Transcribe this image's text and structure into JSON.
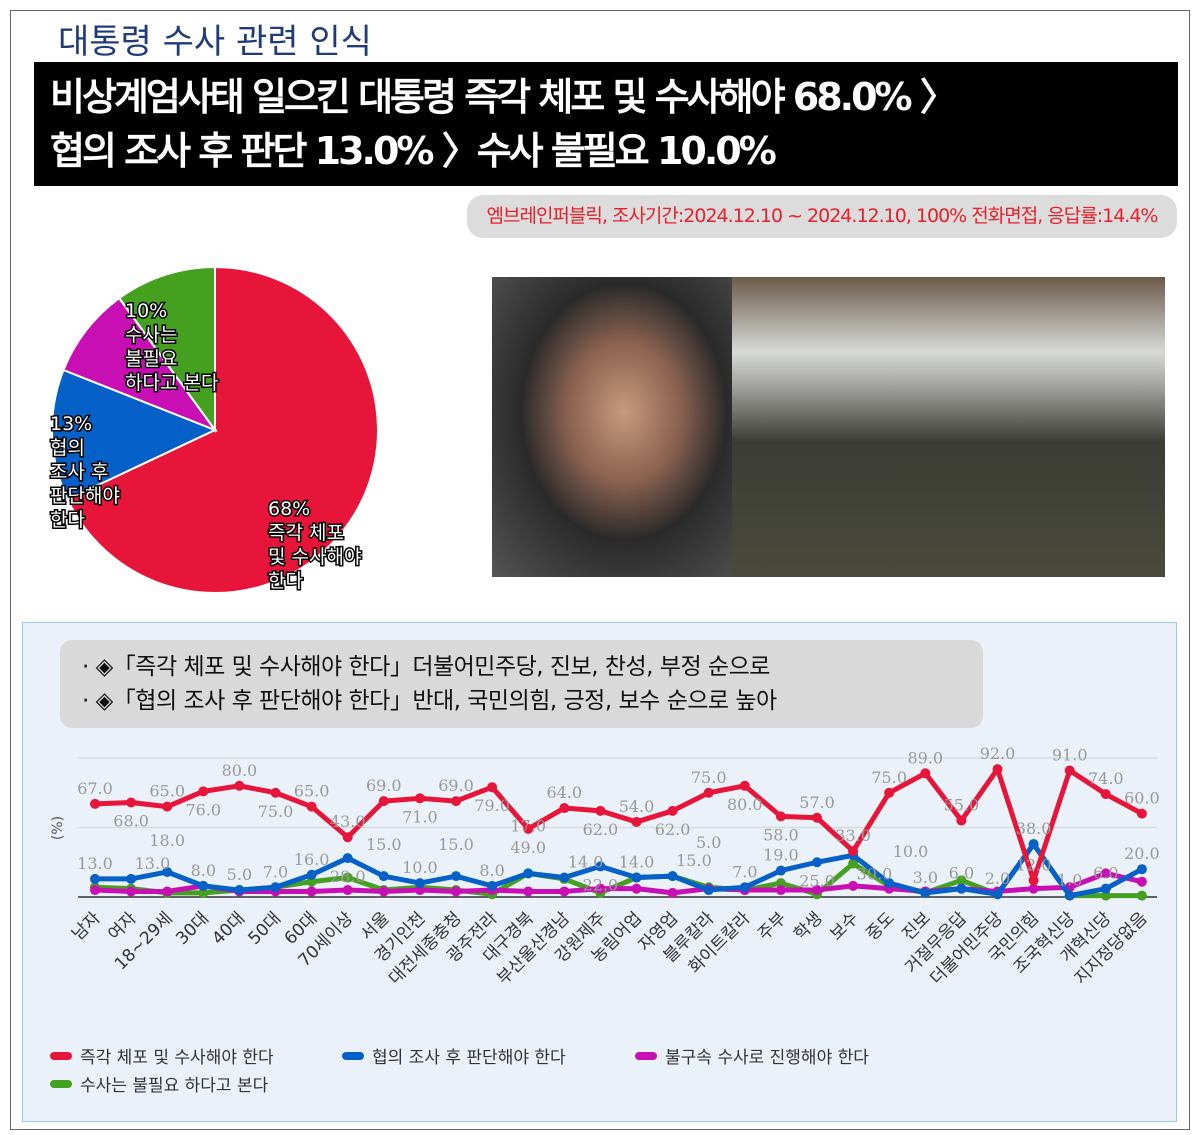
{
  "title": "대통령 수사 관련 인식",
  "banner": {
    "line1": "비상계엄사태 일으킨 대통령 즉각 체포 및 수사해야 68.0% 〉",
    "line2": "협의 조사 후 판단 13.0% 〉수사 불필요 10.0%"
  },
  "source": "엠브레인퍼블릭, 조사기간:2024.12.10 ~ 2024.12.10, 100% 전화면접, 응답률:14.4%",
  "callout": {
    "line1": "· ◈「즉각 체포 및 수사해야 한다」더불어민주당, 진보, 찬성, 부정 순으로",
    "line2": "· ◈「협의 조사 후 판단해야 한다」반대, 국민의힘, 긍정, 보수 순으로 높아"
  },
  "chart_data": [
    {
      "type": "pie",
      "slices": [
        {
          "label": "68%",
          "name": "즉각 체포 및 수사해야 한다",
          "text": [
            "즉각 체포",
            "및 수사해야",
            "한다"
          ],
          "value": 68,
          "color": "#e8153a"
        },
        {
          "label": "13%",
          "name": "협의 조사 후 판단해야 한다",
          "text": [
            "협의",
            "조사 후",
            "판단해야",
            "한다"
          ],
          "value": 13,
          "color": "#0560c8"
        },
        {
          "label": "",
          "name": "불구속 수사로 진행해야 한다",
          "text": [],
          "value": 9,
          "color": "#c80fb4"
        },
        {
          "label": "10%",
          "name": "수사는 불필요 하다고 본다",
          "text": [
            "수사는",
            "불필요",
            "하다고 본다"
          ],
          "value": 10,
          "color": "#46a020"
        }
      ]
    },
    {
      "type": "line",
      "ylabel": "(%)",
      "ylim": [
        0,
        100
      ],
      "grid": true,
      "legend": "bottom",
      "categories": [
        "남자",
        "여자",
        "18~29세",
        "30대",
        "40대",
        "50대",
        "60대",
        "70세이상",
        "서울",
        "경기인천",
        "대전세종충청",
        "광주전라",
        "대구경북",
        "부산울산경남",
        "강원제주",
        "농림어업",
        "자영업",
        "블루칼라",
        "화이트칼라",
        "주부",
        "학생",
        "보수",
        "중도",
        "진보",
        "거절무응답",
        "더불어민주당",
        "국민의힘",
        "조국혁신당",
        "개혁신당",
        "지지정당없음"
      ],
      "series": [
        {
          "name": "즉각 체포 및 수사해야 한다",
          "color": "#e8153a",
          "labeled": true,
          "values": [
            67,
            68,
            65,
            76,
            80,
            75,
            65,
            43,
            69,
            71,
            69,
            79,
            49,
            64,
            62,
            54,
            62,
            75,
            80,
            58,
            57,
            33,
            75,
            89,
            55,
            92,
            12,
            91,
            74,
            60
          ]
        },
        {
          "name": "협의 조사 후 판단해야 한다",
          "color": "#0560c8",
          "labeled": true,
          "values": [
            13,
            13,
            18,
            8,
            5,
            7,
            16,
            28,
            15,
            10,
            15,
            8,
            17,
            14,
            22,
            14,
            15,
            5,
            7,
            19,
            25,
            30,
            10,
            3,
            6,
            2,
            38,
            1,
            6,
            20
          ]
        },
        {
          "name": "불구속 수사로 진행해야 한다",
          "color": "#c80fb4",
          "labeled": false,
          "values": [
            5,
            4,
            4,
            8,
            4,
            4,
            4,
            5,
            4,
            5,
            4,
            5,
            4,
            4,
            6,
            6,
            3,
            6,
            5,
            5,
            5,
            8,
            6,
            4,
            6,
            4,
            6,
            7,
            17,
            11
          ]
        },
        {
          "name": "수사는 불필요 하다고 본다",
          "color": "#46a020",
          "labeled": false,
          "values": [
            7,
            6,
            3,
            3,
            5,
            7,
            11,
            14,
            5,
            7,
            5,
            2,
            17,
            13,
            3,
            14,
            15,
            7,
            5,
            10,
            2,
            24,
            8,
            3,
            12,
            2,
            38,
            1,
            1,
            1
          ]
        }
      ]
    }
  ]
}
